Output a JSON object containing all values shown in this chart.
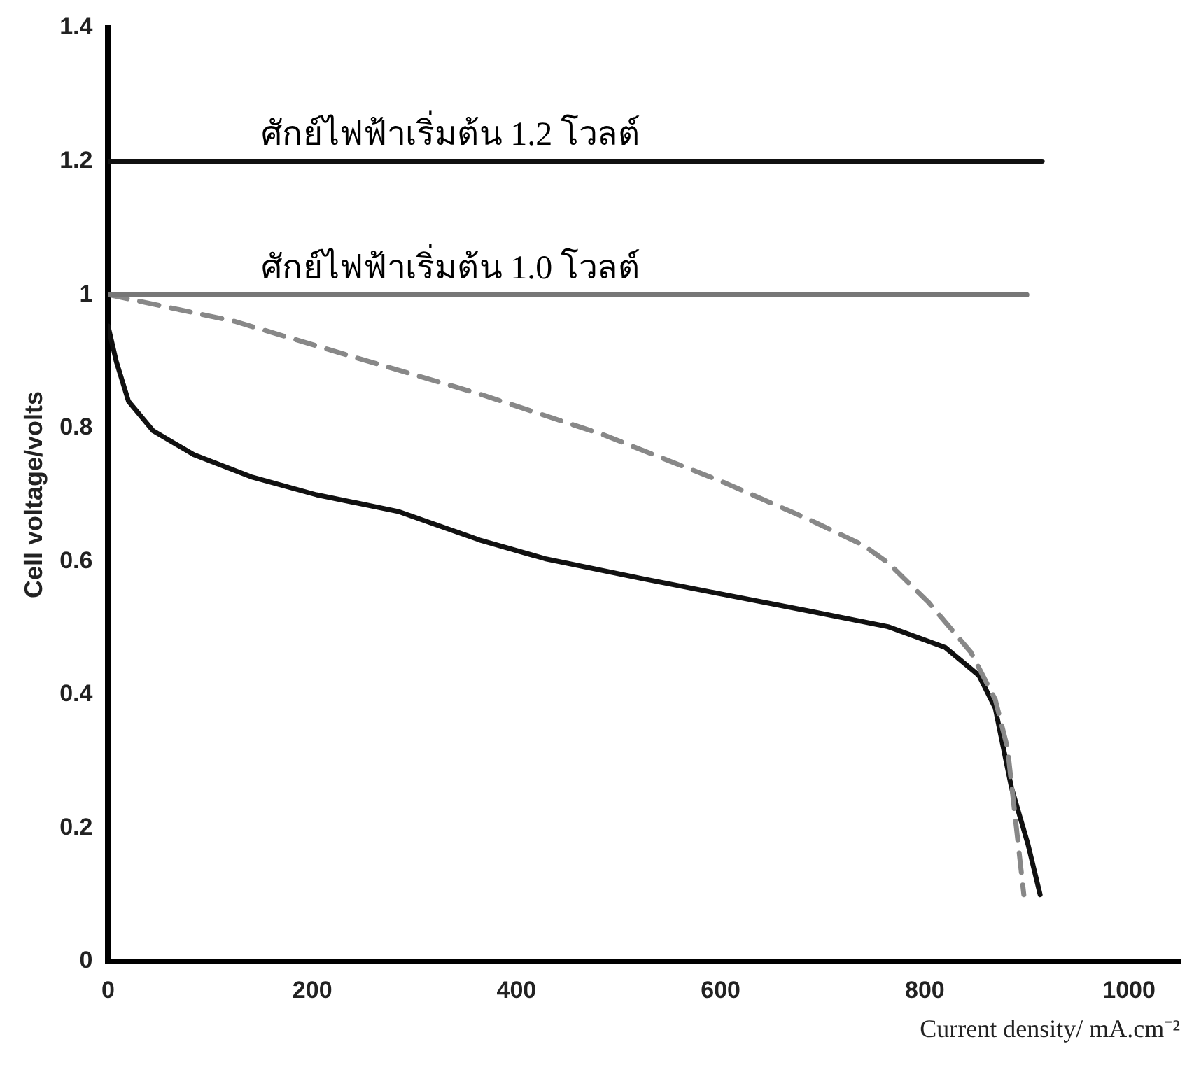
{
  "chart_data": {
    "type": "line",
    "xlabel": "Current density/ mA.cm⁻²",
    "ylabel": "Cell voltage/volts",
    "xlim": [
      0,
      1050
    ],
    "xticks": [
      0,
      200,
      400,
      600,
      800,
      1000
    ],
    "ylim": [
      0,
      1.4
    ],
    "yticks": [
      0,
      0.2,
      0.4,
      0.6,
      0.8,
      1,
      1.2,
      1.4
    ],
    "grid": false,
    "marker": "none",
    "annotations": [
      {
        "text": "ศักย์ไฟฟ้าเริ่มต้น 1.2 โวลต์",
        "x": 150,
        "y": 1.2
      },
      {
        "text": "ศักย์ไฟฟ้าเริ่มต้น 1.0 โวลต์",
        "x": 150,
        "y": 1.0
      }
    ],
    "series": [
      {
        "color": "#111111",
        "line_style": "solid",
        "x": [
          0,
          915
        ],
        "values": [
          1.2,
          1.2
        ]
      },
      {
        "color": "#777777",
        "line_style": "solid",
        "x": [
          0,
          900
        ],
        "values": [
          1.0,
          1.0
        ]
      },
      {
        "color": "#888888",
        "line_style": "dashed",
        "x": [
          0,
          124,
          244,
          364,
          485,
          604,
          685,
          740,
          764,
          804,
          845,
          869,
          881,
          888,
          897
        ],
        "values": [
          1.0,
          0.96,
          0.905,
          0.851,
          0.79,
          0.718,
          0.664,
          0.624,
          0.598,
          0.538,
          0.464,
          0.393,
          0.32,
          0.224,
          0.1
        ]
      },
      {
        "color": "#111111",
        "line_style": "solid",
        "x": [
          0,
          8,
          20,
          44,
          84,
          140,
          204,
          284,
          364,
          428,
          524,
          604,
          685,
          764,
          820,
          853,
          869,
          885,
          901,
          913
        ],
        "values": [
          0.953,
          0.9,
          0.84,
          0.796,
          0.76,
          0.727,
          0.7,
          0.675,
          0.632,
          0.604,
          0.574,
          0.55,
          0.526,
          0.502,
          0.471,
          0.429,
          0.38,
          0.26,
          0.176,
          0.1
        ]
      }
    ]
  }
}
